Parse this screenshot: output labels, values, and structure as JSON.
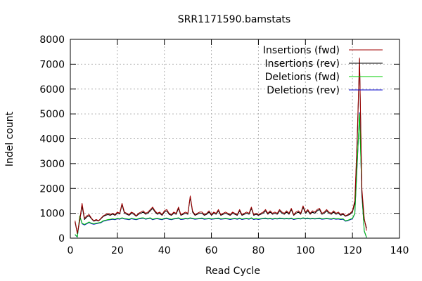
{
  "chart_data": {
    "type": "line",
    "title": "SRR1171590.bamstats",
    "xlabel": "Read Cycle",
    "ylabel": "Indel count",
    "xlim": [
      0,
      140
    ],
    "ylim": [
      0,
      8000
    ],
    "xticks": [
      0,
      20,
      40,
      60,
      80,
      100,
      120,
      140
    ],
    "yticks": [
      0,
      1000,
      2000,
      3000,
      4000,
      5000,
      6000,
      7000,
      8000
    ],
    "grid": true,
    "legend_position": "top-right",
    "x": [
      2,
      3,
      4,
      5,
      6,
      7,
      8,
      9,
      10,
      11,
      12,
      13,
      14,
      15,
      16,
      17,
      18,
      19,
      20,
      21,
      22,
      23,
      24,
      25,
      26,
      27,
      28,
      29,
      30,
      31,
      32,
      33,
      34,
      35,
      36,
      37,
      38,
      39,
      40,
      41,
      42,
      43,
      44,
      45,
      46,
      47,
      48,
      49,
      50,
      51,
      52,
      53,
      54,
      55,
      56,
      57,
      58,
      59,
      60,
      61,
      62,
      63,
      64,
      65,
      66,
      67,
      68,
      69,
      70,
      71,
      72,
      73,
      74,
      75,
      76,
      77,
      78,
      79,
      80,
      81,
      82,
      83,
      84,
      85,
      86,
      87,
      88,
      89,
      90,
      91,
      92,
      93,
      94,
      95,
      96,
      97,
      98,
      99,
      100,
      101,
      102,
      103,
      104,
      105,
      106,
      107,
      108,
      109,
      110,
      111,
      112,
      113,
      114,
      115,
      116,
      117,
      118,
      119,
      120,
      121,
      122,
      123,
      124,
      125,
      126
    ],
    "series": [
      {
        "name": "Insertions (fwd)",
        "color": "#a00000",
        "values": [
          700,
          200,
          750,
          1400,
          800,
          900,
          950,
          800,
          700,
          750,
          700,
          800,
          900,
          950,
          1000,
          950,
          1000,
          950,
          1050,
          1000,
          1400,
          1050,
          1000,
          950,
          1050,
          1000,
          900,
          1000,
          1050,
          1100,
          1000,
          1050,
          1150,
          1250,
          1100,
          1000,
          1050,
          950,
          1100,
          1150,
          1000,
          950,
          1050,
          1000,
          1250,
          950,
          1000,
          1050,
          1000,
          1700,
          1100,
          950,
          1000,
          1050,
          1050,
          950,
          1000,
          1100,
          950,
          1050,
          1000,
          1150,
          950,
          1000,
          1050,
          1000,
          950,
          1050,
          1000,
          950,
          1150,
          950,
          1000,
          1050,
          1000,
          1250,
          950,
          1000,
          950,
          1000,
          1050,
          1150,
          1000,
          1100,
          1000,
          1050,
          1000,
          1150,
          1050,
          1000,
          1100,
          1000,
          1200,
          950,
          1050,
          1100,
          1000,
          1300,
          1050,
          1150,
          1000,
          1100,
          1050,
          1150,
          1200,
          1000,
          1050,
          1150,
          1050,
          1000,
          1100,
          1000,
          1050,
          950,
          1000,
          900,
          950,
          1000,
          1100,
          1500,
          4000,
          7250,
          2000,
          800,
          300
        ]
      },
      {
        "name": "Insertions (rev)",
        "color": "#000000",
        "values": [
          650,
          180,
          700,
          1300,
          750,
          850,
          900,
          780,
          680,
          720,
          690,
          780,
          870,
          920,
          950,
          920,
          970,
          920,
          1000,
          970,
          1350,
          1000,
          960,
          920,
          1000,
          960,
          880,
          960,
          1000,
          1050,
          960,
          1000,
          1100,
          1200,
          1060,
          960,
          1000,
          920,
          1050,
          1100,
          960,
          920,
          1000,
          960,
          1200,
          920,
          960,
          1000,
          960,
          1650,
          1050,
          920,
          960,
          1000,
          1000,
          920,
          960,
          1050,
          920,
          1000,
          960,
          1100,
          920,
          960,
          1000,
          960,
          920,
          1000,
          960,
          920,
          1100,
          920,
          960,
          1000,
          960,
          1200,
          920,
          960,
          920,
          960,
          1000,
          1100,
          960,
          1050,
          960,
          1000,
          960,
          1100,
          1000,
          960,
          1050,
          960,
          1150,
          920,
          1000,
          1050,
          960,
          1250,
          1000,
          1100,
          960,
          1050,
          1000,
          1100,
          1150,
          960,
          1000,
          1100,
          1000,
          960,
          1050,
          960,
          1000,
          920,
          960,
          880,
          920,
          960,
          1050,
          1400,
          3800,
          7200,
          1800,
          750,
          400
        ]
      },
      {
        "name": "Deletions (fwd)",
        "color": "#00cc00",
        "values": [
          150,
          50,
          900,
          600,
          550,
          600,
          650,
          600,
          580,
          600,
          620,
          640,
          700,
          720,
          750,
          760,
          780,
          760,
          800,
          780,
          820,
          790,
          780,
          760,
          800,
          780,
          760,
          790,
          810,
          820,
          780,
          800,
          820,
          760,
          790,
          800,
          780,
          760,
          800,
          810,
          780,
          760,
          790,
          800,
          820,
          770,
          780,
          800,
          790,
          820,
          800,
          780,
          790,
          800,
          810,
          780,
          790,
          800,
          780,
          790,
          800,
          810,
          780,
          790,
          800,
          790,
          770,
          790,
          800,
          780,
          810,
          770,
          790,
          800,
          780,
          820,
          770,
          790,
          770,
          790,
          800,
          810,
          790,
          800,
          780,
          800,
          790,
          810,
          800,
          790,
          800,
          790,
          810,
          770,
          790,
          800,
          790,
          820,
          800,
          810,
          790,
          800,
          790,
          800,
          810,
          780,
          790,
          800,
          790,
          780,
          800,
          780,
          790,
          770,
          780,
          700,
          720,
          760,
          800,
          1000,
          3000,
          5000,
          1800,
          300,
          30
        ]
      },
      {
        "name": "Deletions (rev)",
        "color": "#0000cc",
        "values": [
          140,
          40,
          880,
          580,
          530,
          580,
          630,
          580,
          560,
          580,
          600,
          620,
          680,
          700,
          730,
          740,
          760,
          740,
          780,
          760,
          800,
          770,
          760,
          740,
          780,
          760,
          740,
          770,
          790,
          800,
          760,
          780,
          800,
          740,
          770,
          780,
          760,
          740,
          780,
          790,
          760,
          740,
          770,
          780,
          800,
          750,
          760,
          780,
          770,
          800,
          780,
          760,
          770,
          780,
          790,
          760,
          770,
          780,
          760,
          770,
          780,
          790,
          760,
          770,
          780,
          770,
          750,
          770,
          780,
          760,
          790,
          750,
          770,
          780,
          760,
          800,
          750,
          770,
          750,
          770,
          780,
          790,
          770,
          780,
          760,
          780,
          770,
          790,
          780,
          770,
          780,
          770,
          790,
          750,
          770,
          780,
          770,
          800,
          780,
          790,
          770,
          780,
          770,
          780,
          790,
          760,
          770,
          780,
          770,
          760,
          780,
          760,
          770,
          750,
          760,
          680,
          700,
          740,
          780,
          980,
          2900,
          5050,
          1750,
          280,
          20
        ]
      }
    ]
  }
}
